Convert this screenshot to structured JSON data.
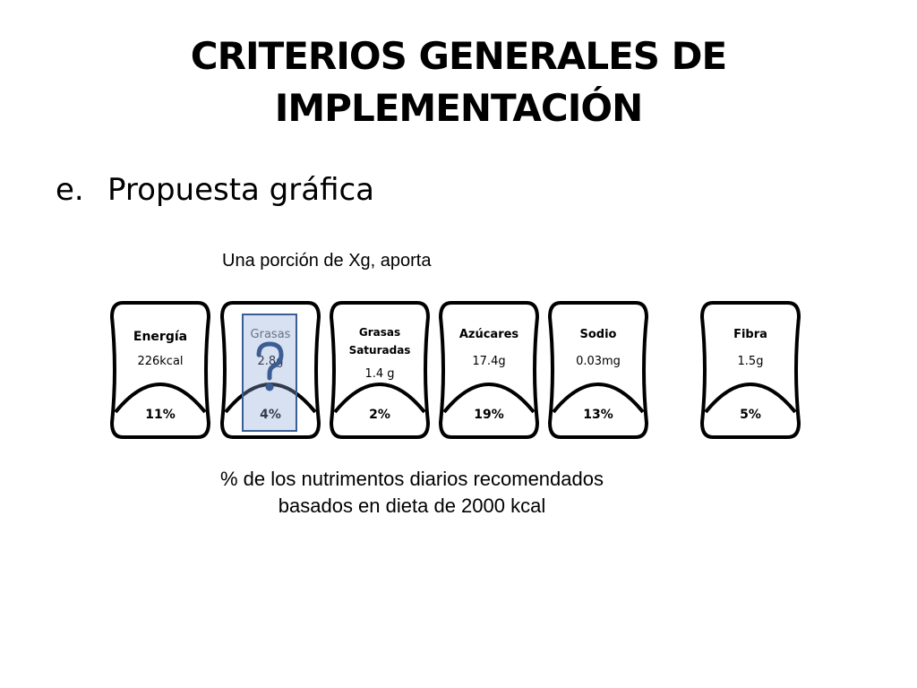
{
  "title": {
    "line1": "CRITERIOS GENERALES DE",
    "line2": "IMPLEMENTACIÓN"
  },
  "bullet": {
    "marker": "e.",
    "text": "Propuesta gráfica"
  },
  "caption_top": "Una porción de Xg, aporta",
  "caption_bottom": {
    "line1": "% de los nutrimentos diarios recomendados",
    "line2": "basados en dieta de 2000 kcal"
  },
  "labels": [
    {
      "name": "Energía",
      "amount": "226kcal",
      "percent": "11%"
    },
    {
      "name": "Grasas",
      "amount": "2.8g",
      "percent": "4%"
    },
    {
      "name_line1": "Grasas",
      "name_line2": "Saturadas",
      "amount": "1.4 g",
      "percent": "2%"
    },
    {
      "name": "Azúcares",
      "amount": "17.4g",
      "percent": "19%"
    },
    {
      "name": "Sodio",
      "amount": "0.03mg",
      "percent": "13%"
    },
    {
      "name": "Fibra",
      "amount": "1.5g",
      "percent": "5%"
    }
  ],
  "colors": {
    "highlight_fill": "#8caad7",
    "highlight_border": "#3a5d93",
    "label_stroke": "#000000"
  },
  "icons": {
    "highlight_overlay": "question-mark-icon"
  }
}
